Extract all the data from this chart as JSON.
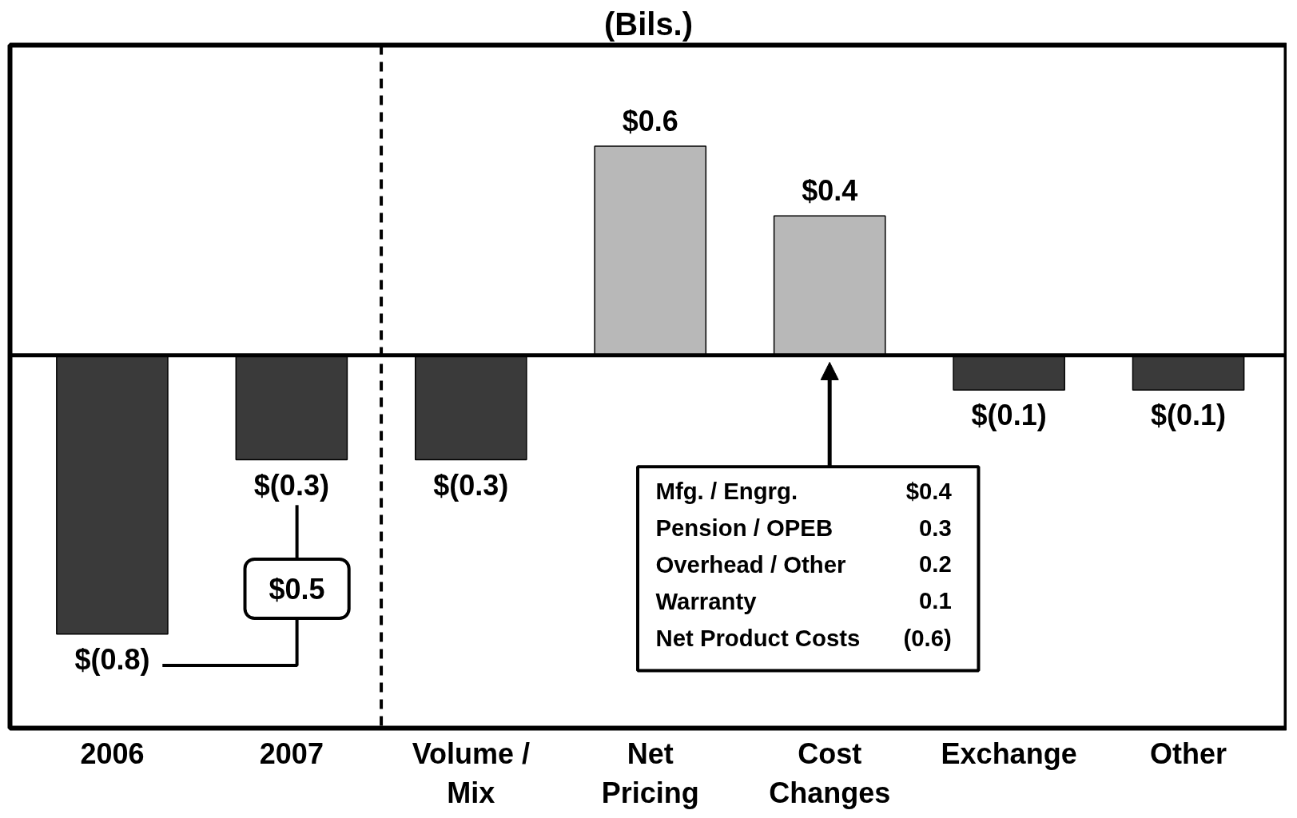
{
  "chart_data": {
    "type": "bar",
    "title": "(Bils.)",
    "categories": [
      "2006",
      "2007",
      "Volume /\nMix",
      "Net\nPricing",
      "Cost\nChanges",
      "Exchange",
      "Other"
    ],
    "values": [
      -0.8,
      -0.3,
      -0.3,
      0.6,
      0.4,
      -0.1,
      -0.1
    ],
    "colors": [
      "#3a3a3a",
      "#3a3a3a",
      "#3a3a3a",
      "#b8b8b8",
      "#b8b8b8",
      "#3a3a3a",
      "#3a3a3a"
    ],
    "value_labels": [
      "$(0.8)",
      "$(0.3)",
      "$(0.3)",
      "$0.6",
      "$0.4",
      "$(0.1)",
      "$(0.1)"
    ],
    "ylim": [
      -1.07,
      0.89
    ],
    "annotations": [
      "$0.5",
      "Mfg. / Engrg. $0.4",
      "Pension / OPEB 0.3",
      "Overhead / Other 0.2",
      "Warranty 0.1",
      "Net Product Costs (0.6)"
    ],
    "grid": false
  }
}
